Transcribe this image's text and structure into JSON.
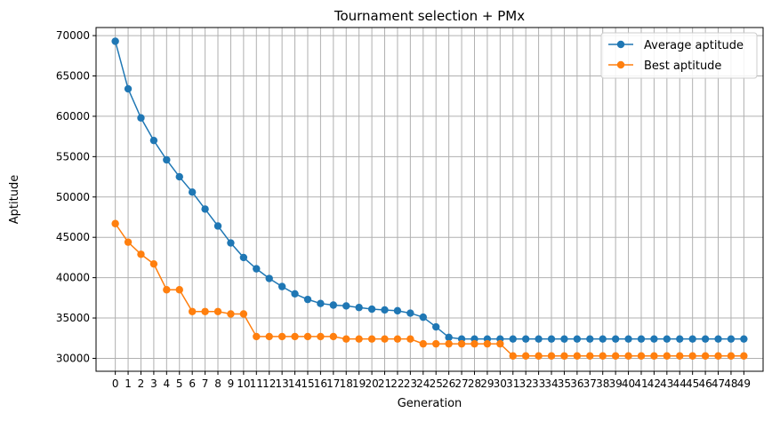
{
  "chart_data": {
    "type": "line",
    "title": "Tournament selection + PMx",
    "xlabel": "Generation",
    "ylabel": "Aptitude",
    "x": [
      0,
      1,
      2,
      3,
      4,
      5,
      6,
      7,
      8,
      9,
      10,
      11,
      12,
      13,
      14,
      15,
      16,
      17,
      18,
      19,
      20,
      21,
      22,
      23,
      24,
      25,
      26,
      27,
      28,
      29,
      30,
      31,
      32,
      33,
      34,
      35,
      36,
      37,
      38,
      39,
      40,
      41,
      42,
      43,
      44,
      45,
      46,
      47,
      48,
      49
    ],
    "xlim": [
      -1.5,
      50.5
    ],
    "ylim": [
      28400,
      71000
    ],
    "yticks": [
      30000,
      35000,
      40000,
      45000,
      50000,
      55000,
      60000,
      65000,
      70000
    ],
    "grid": true,
    "legend": "top-right",
    "series": [
      {
        "name": "Average aptitude",
        "color": "#1f77b4",
        "values": [
          69300,
          63400,
          59800,
          57000,
          54600,
          52500,
          50600,
          48500,
          46400,
          44300,
          42500,
          41100,
          39900,
          38900,
          38000,
          37300,
          36800,
          36600,
          36500,
          36300,
          36100,
          36000,
          35900,
          35600,
          35100,
          33900,
          32600,
          32400,
          32400,
          32400,
          32400,
          32400,
          32400,
          32400,
          32400,
          32400,
          32400,
          32400,
          32400,
          32400,
          32400,
          32400,
          32400,
          32400,
          32400,
          32400,
          32400,
          32400,
          32400,
          32400
        ]
      },
      {
        "name": "Best aptitude",
        "color": "#ff7f0e",
        "values": [
          46700,
          44400,
          42900,
          41700,
          38500,
          38500,
          35800,
          35800,
          35800,
          35500,
          35500,
          32700,
          32700,
          32700,
          32700,
          32700,
          32700,
          32700,
          32400,
          32400,
          32400,
          32400,
          32400,
          32400,
          31800,
          31800,
          31800,
          31800,
          31800,
          31800,
          31800,
          30300,
          30300,
          30300,
          30300,
          30300,
          30300,
          30300,
          30300,
          30300,
          30300,
          30300,
          30300,
          30300,
          30300,
          30300,
          30300,
          30300,
          30300,
          30300
        ]
      }
    ]
  }
}
